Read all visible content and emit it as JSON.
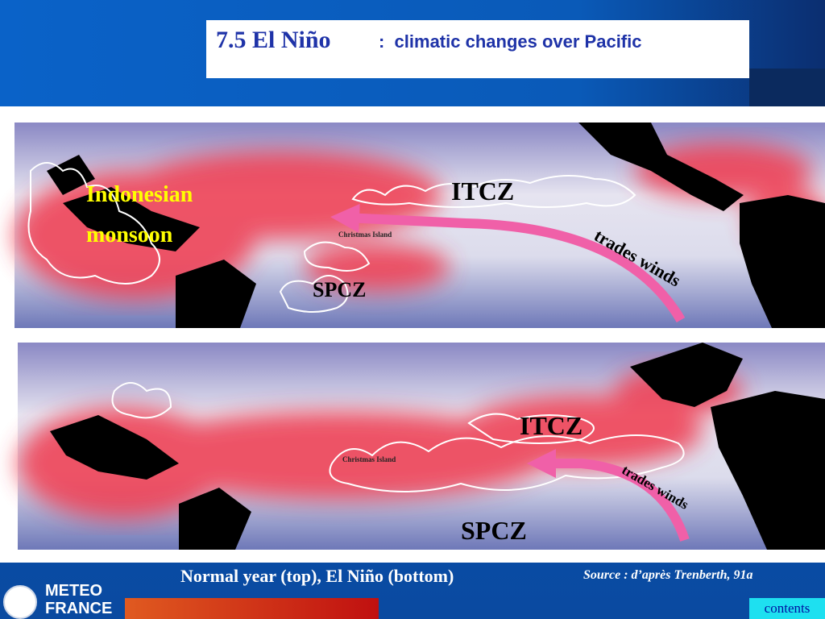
{
  "header": {
    "title_number": "7.5 El Niño",
    "title_text": ":  climatic changes over Pacific"
  },
  "maps": [
    {
      "itcz": "ITCZ",
      "monsoon": [
        "Indonesian",
        "monsoon"
      ],
      "spcz": "SPCZ",
      "winds": "trades winds",
      "island": "Christmas Island"
    },
    {
      "itcz": "ITCZ",
      "spcz": "SPCZ",
      "winds": "trades winds",
      "island": "Christmas Island"
    }
  ],
  "caption": "Normal year (top), El Niño (bottom)",
  "source": "Source : d’après Trenberth, 91a",
  "logo": [
    "METEO",
    "FRANCE"
  ],
  "nav": "contents"
}
